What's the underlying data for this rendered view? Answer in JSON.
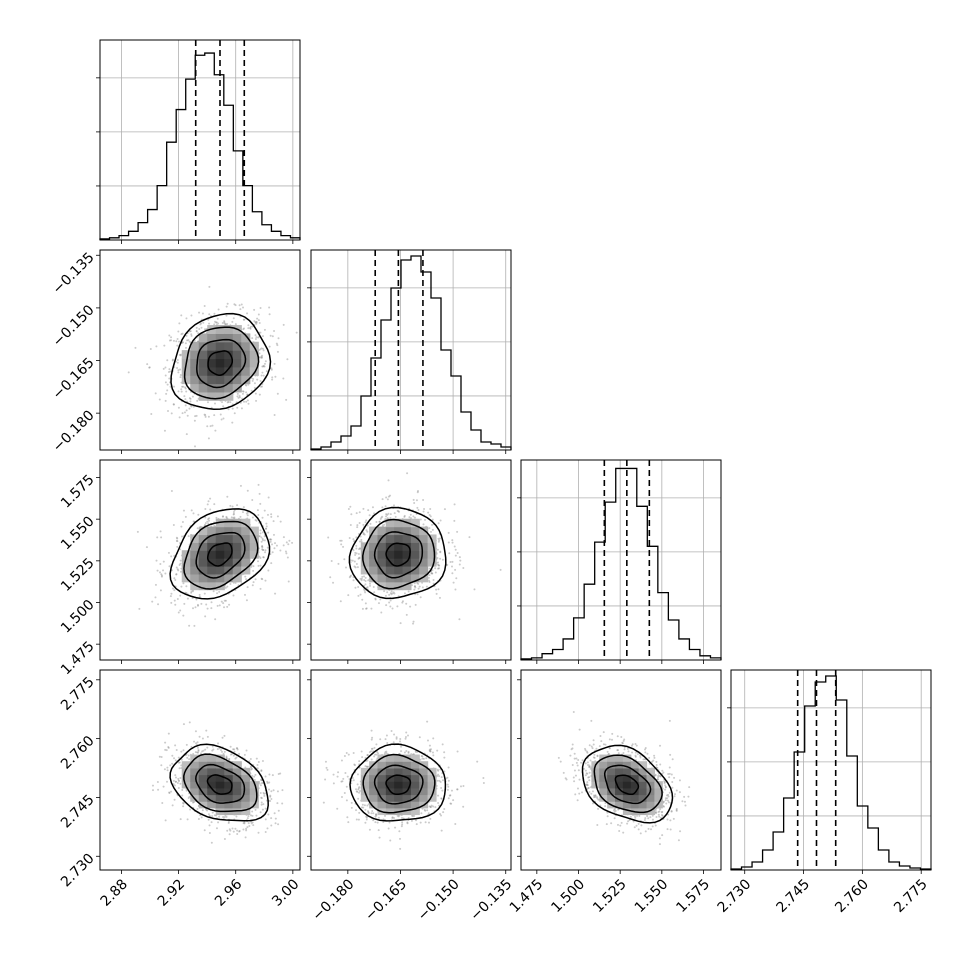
{
  "chart_data": {
    "type": "corner",
    "grid": true,
    "params": [
      {
        "range": [
          2.865,
          3.005
        ],
        "ticks": [
          "2.88",
          "2.92",
          "2.96",
          "3.00"
        ],
        "quantiles": [
          2.932,
          2.949,
          2.966
        ],
        "hist": [
          0.5,
          1,
          2,
          4,
          8,
          14,
          25,
          45,
          60,
          74,
          85,
          86,
          76,
          62,
          41,
          25,
          13,
          7,
          4,
          2,
          1
        ],
        "hist_ylim": [
          0,
          92
        ]
      },
      {
        "range": [
          -0.1905,
          -0.1335
        ],
        "ticks": [
          "−0.180",
          "−0.165",
          "−0.150",
          "−0.135"
        ],
        "quantiles": [
          -0.1722,
          -0.1656,
          -0.1586
        ],
        "hist": [
          0.5,
          1.5,
          4,
          7,
          12,
          27,
          46,
          65,
          81,
          95,
          97,
          89,
          76,
          50,
          37,
          19,
          10,
          4,
          3,
          1.5
        ],
        "hist_ylim": [
          0,
          100
        ]
      },
      {
        "range": [
          1.4655,
          1.5855
        ],
        "ticks": [
          "1.475",
          "1.500",
          "1.525",
          "1.550",
          "1.575"
        ],
        "quantiles": [
          1.5155,
          1.529,
          1.5425
        ],
        "hist": [
          0.5,
          1,
          3,
          5,
          10,
          20,
          36,
          56,
          75,
          91,
          91,
          73,
          54,
          32,
          19,
          10,
          5,
          2,
          1
        ],
        "hist_ylim": [
          0,
          95
        ]
      },
      {
        "range": [
          2.7265,
          2.7775
        ],
        "ticks": [
          "2.730",
          "2.745",
          "2.760",
          "2.775"
        ],
        "quantiles": [
          2.7435,
          2.7483,
          2.7532
        ],
        "hist": [
          0.5,
          1.5,
          4,
          10,
          19,
          36,
          59,
          82,
          94,
          97,
          85,
          57,
          32,
          21,
          10,
          4,
          2,
          1,
          0.5
        ],
        "hist_ylim": [
          0,
          100
        ]
      }
    ],
    "pairs": [
      {
        "row": 1,
        "col": 0,
        "center": [
          2.949,
          -0.1656
        ],
        "corr": 0.15
      },
      {
        "row": 2,
        "col": 0,
        "center": [
          2.949,
          1.529
        ],
        "corr": 0.3
      },
      {
        "row": 2,
        "col": 1,
        "center": [
          -0.1656,
          1.529
        ],
        "corr": 0.05
      },
      {
        "row": 3,
        "col": 0,
        "center": [
          2.949,
          2.7483
        ],
        "corr": -0.3
      },
      {
        "row": 3,
        "col": 1,
        "center": [
          -0.1656,
          2.7483
        ],
        "corr": 0.0
      },
      {
        "row": 3,
        "col": 2,
        "center": [
          1.529,
          2.7483
        ],
        "corr": -0.35
      }
    ],
    "colors": {
      "line": "#000000",
      "grid": "#b0b0b0",
      "points": "#8c8c8c",
      "fill": "#000000"
    }
  }
}
